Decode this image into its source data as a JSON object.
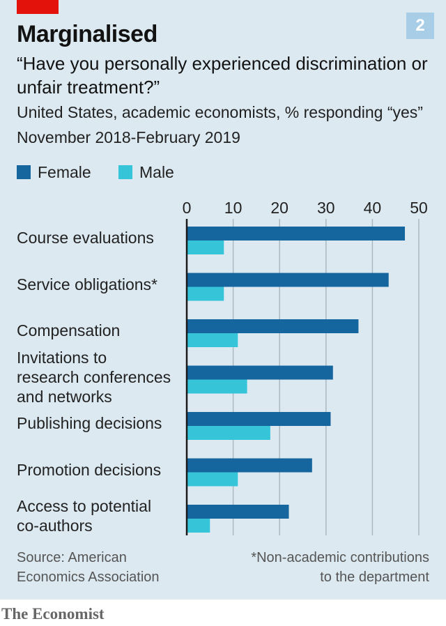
{
  "header": {
    "title": "Marginalised",
    "badge": "2",
    "subtitle": "“Have you personally experienced discrimination or unfair treatment?”",
    "description_line1": "United States, academic economists, % responding “yes”",
    "description_line2": "November 2018-February 2019"
  },
  "colors": {
    "female": "#15659e",
    "male": "#36c5d8",
    "axis": "#1a1a1a",
    "grid": "#a9b8c2",
    "brand_red": "#e3120b"
  },
  "chart_data": {
    "type": "bar",
    "orientation": "horizontal",
    "categories": [
      "Course evaluations",
      "Service obligations*",
      "Compensation",
      "Invitations to research conferences and networks",
      "Publishing decisions",
      "Promotion decisions",
      "Access to potential co-authors"
    ],
    "category_lines": [
      [
        "Course evaluations"
      ],
      [
        "Service obligations*"
      ],
      [
        "Compensation"
      ],
      [
        "Invitations to",
        "research conferences",
        "and networks"
      ],
      [
        "Publishing decisions"
      ],
      [
        "Promotion decisions"
      ],
      [
        "Access to potential",
        "co-authors"
      ]
    ],
    "series": [
      {
        "name": "Female",
        "values": [
          47,
          43.5,
          37,
          31.5,
          31,
          27,
          22
        ]
      },
      {
        "name": "Male",
        "values": [
          8,
          8,
          11,
          13,
          18,
          11,
          5
        ]
      }
    ],
    "xlim": [
      0,
      50
    ],
    "xticks": [
      0,
      10,
      20,
      30,
      40,
      50
    ],
    "grid": true,
    "legend_position": "top-left"
  },
  "footer": {
    "source_line1": "Source: American",
    "source_line2": "Economics Association",
    "note_line1": "*Non-academic contributions",
    "note_line2": "to the department",
    "brand": "The Economist"
  }
}
